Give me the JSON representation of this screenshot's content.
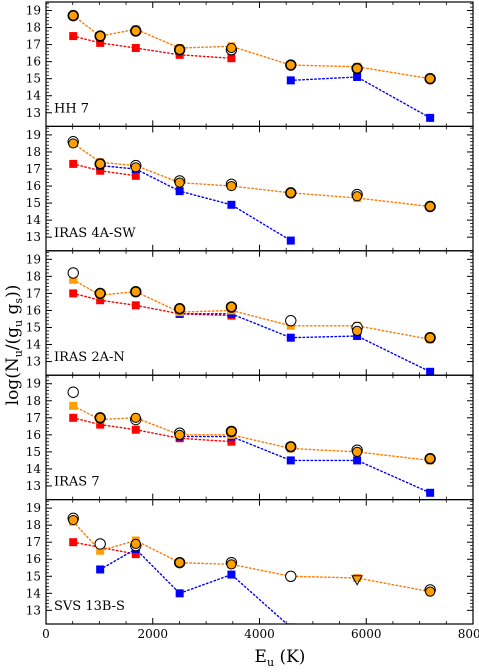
{
  "chart_data": {
    "type": "scatter",
    "xlabel": "E_u (K)",
    "ylabel": "log(N_u/(g_u g_s))",
    "xlim": [
      0,
      8000
    ],
    "ylim": [
      12.2,
      19.5
    ],
    "xticks": [
      0,
      2000,
      4000,
      6000,
      8000
    ],
    "yticks": [
      13,
      14,
      15,
      16,
      17,
      18,
      19
    ],
    "x": [
      510,
      1015,
      1682,
      2504,
      3474,
      4586,
      5829,
      7197
    ],
    "colors": {
      "red": "#ff0000",
      "blue": "#0000ff",
      "orange": "#ff9f00",
      "orange_line": "#ff7a00",
      "dark": "#000000"
    },
    "panels": [
      {
        "label": "HH 7",
        "series": [
          {
            "marker": "square",
            "color": "red",
            "values": [
              17.5,
              17.1,
              16.8,
              16.4,
              16.2,
              null,
              null,
              null
            ]
          },
          {
            "marker": "square",
            "color": "blue",
            "values": [
              null,
              null,
              null,
              null,
              null,
              14.9,
              15.1,
              12.7
            ]
          },
          {
            "marker": "square",
            "color": "orange",
            "values": [
              18.7,
              17.5,
              17.9,
              16.8,
              16.9,
              15.8,
              15.7,
              15.0
            ]
          },
          {
            "marker": "circle-open",
            "color": "dark",
            "values": [
              18.7,
              17.5,
              17.8,
              16.7,
              16.7,
              15.8,
              15.6,
              15.0
            ]
          },
          {
            "marker": "circle-filled",
            "color": "orange",
            "values": [
              18.7,
              17.5,
              17.8,
              16.7,
              16.8,
              15.8,
              15.6,
              15.0
            ]
          }
        ]
      },
      {
        "label": "IRAS 4A-SW",
        "series": [
          {
            "marker": "square",
            "color": "red",
            "values": [
              17.3,
              16.9,
              16.6,
              null,
              null,
              null,
              null,
              null
            ]
          },
          {
            "marker": "square",
            "color": "blue",
            "values": [
              null,
              17.2,
              17.0,
              15.7,
              14.9,
              12.8,
              null,
              null
            ]
          },
          {
            "marker": "square",
            "color": "orange",
            "values": [
              18.5,
              17.4,
              17.2,
              16.2,
              16.0,
              15.6,
              15.3,
              14.8
            ]
          },
          {
            "marker": "circle-open",
            "color": "dark",
            "values": [
              18.6,
              17.3,
              17.2,
              16.3,
              16.1,
              15.6,
              15.5,
              14.8
            ]
          },
          {
            "marker": "circle-filled",
            "color": "orange",
            "values": [
              18.5,
              17.3,
              17.1,
              16.2,
              16.0,
              15.6,
              15.4,
              14.8
            ]
          }
        ]
      },
      {
        "label": "IRAS 2A-N",
        "series": [
          {
            "marker": "square",
            "color": "red",
            "values": [
              17.0,
              16.6,
              16.3,
              15.8,
              15.7,
              null,
              null,
              null
            ]
          },
          {
            "marker": "square",
            "color": "blue",
            "values": [
              null,
              null,
              null,
              15.8,
              15.8,
              14.4,
              14.5,
              12.4
            ]
          },
          {
            "marker": "square",
            "color": "orange",
            "values": [
              17.8,
              16.9,
              17.1,
              15.9,
              16.0,
              15.1,
              15.1,
              14.3
            ]
          },
          {
            "marker": "circle-open",
            "color": "dark",
            "values": [
              18.2,
              17.0,
              17.1,
              16.1,
              16.2,
              15.4,
              15.0,
              14.4
            ]
          },
          {
            "marker": "circle-filled",
            "color": "orange",
            "values": [
              null,
              17.0,
              17.1,
              16.1,
              16.2,
              null,
              14.8,
              14.4
            ]
          }
        ]
      },
      {
        "label": "IRAS 7",
        "series": [
          {
            "marker": "square",
            "color": "red",
            "values": [
              17.0,
              16.6,
              16.3,
              15.8,
              15.6,
              null,
              null,
              null
            ]
          },
          {
            "marker": "square",
            "color": "blue",
            "values": [
              null,
              null,
              null,
              15.9,
              15.9,
              14.5,
              14.5,
              12.6
            ]
          },
          {
            "marker": "square",
            "color": "orange",
            "values": [
              17.7,
              16.9,
              17.0,
              16.0,
              16.0,
              15.2,
              15.0,
              14.5
            ]
          },
          {
            "marker": "circle-open",
            "color": "dark",
            "values": [
              18.5,
              17.0,
              16.9,
              16.1,
              16.2,
              15.3,
              15.1,
              14.6
            ]
          },
          {
            "marker": "circle-filled",
            "color": "orange",
            "values": [
              null,
              17.0,
              17.0,
              16.0,
              16.2,
              15.3,
              15.0,
              14.6
            ]
          }
        ]
      },
      {
        "label": "SVS 13B-S",
        "series": [
          {
            "marker": "square",
            "color": "red",
            "values": [
              17.0,
              null,
              16.3,
              null,
              null,
              null,
              null,
              null
            ]
          },
          {
            "marker": "square",
            "color": "blue",
            "values": [
              null,
              15.4,
              16.6,
              14.0,
              15.1,
              12.0,
              null,
              null
            ]
          },
          {
            "marker": "square",
            "color": "orange",
            "values": [
              18.2,
              16.5,
              17.1,
              15.8,
              15.7,
              15.0,
              14.9,
              14.1
            ]
          },
          {
            "marker": "circle-open",
            "color": "dark",
            "values": [
              18.4,
              16.9,
              16.8,
              15.8,
              15.8,
              15.0,
              null,
              14.2
            ]
          },
          {
            "marker": "circle-filled",
            "color": "orange",
            "values": [
              18.3,
              null,
              16.9,
              15.8,
              15.7,
              null,
              null,
              14.1
            ]
          },
          {
            "marker": "triangle-down-open",
            "color": "dark",
            "values": [
              null,
              null,
              null,
              null,
              null,
              null,
              14.8,
              null
            ]
          }
        ]
      }
    ],
    "lines": [
      {
        "series": 0,
        "color": "red"
      },
      {
        "series": 1,
        "color": "blue"
      },
      {
        "series": 2,
        "color": "orange_line"
      }
    ]
  }
}
